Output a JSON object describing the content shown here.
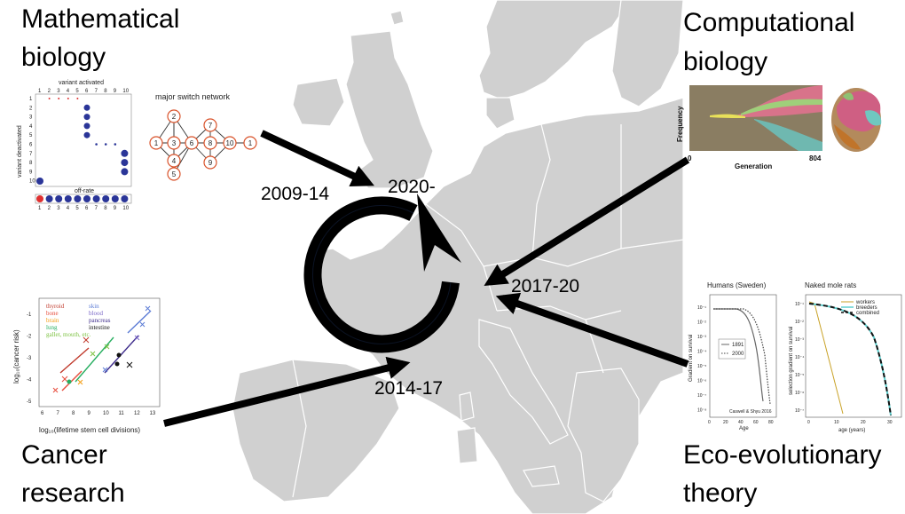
{
  "corners": {
    "top_left": [
      "Mathematical",
      "biology"
    ],
    "top_right": [
      "Computational",
      "biology"
    ],
    "bottom_left": [
      "Cancer",
      "research"
    ],
    "bottom_right": [
      "Eco-evolutionary",
      "theory"
    ]
  },
  "periods": {
    "math": "2009-14",
    "current": "2020-",
    "cancer": "2014-17",
    "comp_eco": "2017-20"
  },
  "matrix_panel": {
    "top_label": "variant activated",
    "side_label": "variant deactivated",
    "offrate_label": "off-rate",
    "cols": [
      "1",
      "2",
      "3",
      "4",
      "5",
      "6",
      "7",
      "8",
      "9",
      "10"
    ],
    "rows": [
      "1",
      "2",
      "3",
      "4",
      "5",
      "6",
      "7",
      "8",
      "9",
      "10"
    ]
  },
  "network_panel": {
    "title": "major switch network",
    "nodes": [
      "1",
      "2",
      "3",
      "4",
      "5",
      "6",
      "7",
      "8",
      "9",
      "10",
      "1"
    ]
  },
  "muller_panel": {
    "ylabel": "Frequency",
    "xlabel": "Generation",
    "x_start": "0",
    "x_end": "804"
  },
  "cancer_chart": {
    "ylabel": "log₁₀(cancer risk)",
    "xlabel": "log₁₀(lifetime stem cell divisions)",
    "xticks": [
      "6",
      "7",
      "8",
      "9",
      "10",
      "11",
      "12",
      "13"
    ],
    "yticks": [
      "-1",
      "-2",
      "-3",
      "-4",
      "-5"
    ],
    "legend_left": [
      {
        "label": "thyroid",
        "color": "#c0392b"
      },
      {
        "label": "bone",
        "color": "#e74c3c"
      },
      {
        "label": "brain",
        "color": "#f39c12"
      },
      {
        "label": "lung",
        "color": "#27ae60"
      },
      {
        "label": "gallet, mouth, etc.",
        "color": "#7dc242"
      }
    ],
    "legend_right": [
      {
        "label": "skin",
        "color": "#5b7bd5"
      },
      {
        "label": "blood",
        "color": "#7b68c8"
      },
      {
        "label": "pancreas",
        "color": "#3c2a8a"
      },
      {
        "label": "intestine",
        "color": "#111111"
      }
    ]
  },
  "chart_data": [
    {
      "type": "line",
      "title": "Humans (Sweden)",
      "xlabel": "Age",
      "ylabel": "Gradient on survival",
      "annotation": "Caswell & Shyu 2016",
      "series": [
        {
          "name": "1891"
        },
        {
          "name": "2000"
        }
      ],
      "xticks": [
        "0",
        "20",
        "40",
        "60",
        "80"
      ],
      "yticks": [
        "10⁻¹",
        "10⁻²",
        "10⁻³",
        "10⁻⁴",
        "10⁻⁵",
        "10⁻⁶",
        "10⁻⁷",
        "10⁻⁸"
      ]
    },
    {
      "type": "line",
      "title": "Naked mole rats",
      "xlabel": "age (years)",
      "ylabel": "selection gradient on survival",
      "series": [
        {
          "name": "workers"
        },
        {
          "name": "breeders"
        },
        {
          "name": "combined"
        }
      ],
      "xticks": [
        "0",
        "10",
        "20",
        "30"
      ],
      "yticks": [
        "10⁻¹",
        "10⁻²",
        "10⁻³",
        "10⁻⁴",
        "10⁻⁵",
        "10⁻⁶",
        "10⁻⁷"
      ]
    }
  ],
  "colors": {
    "map": "#d0d0d0",
    "map_border": "#ffffff",
    "arrow": "#000000",
    "cycle": "#000000"
  }
}
